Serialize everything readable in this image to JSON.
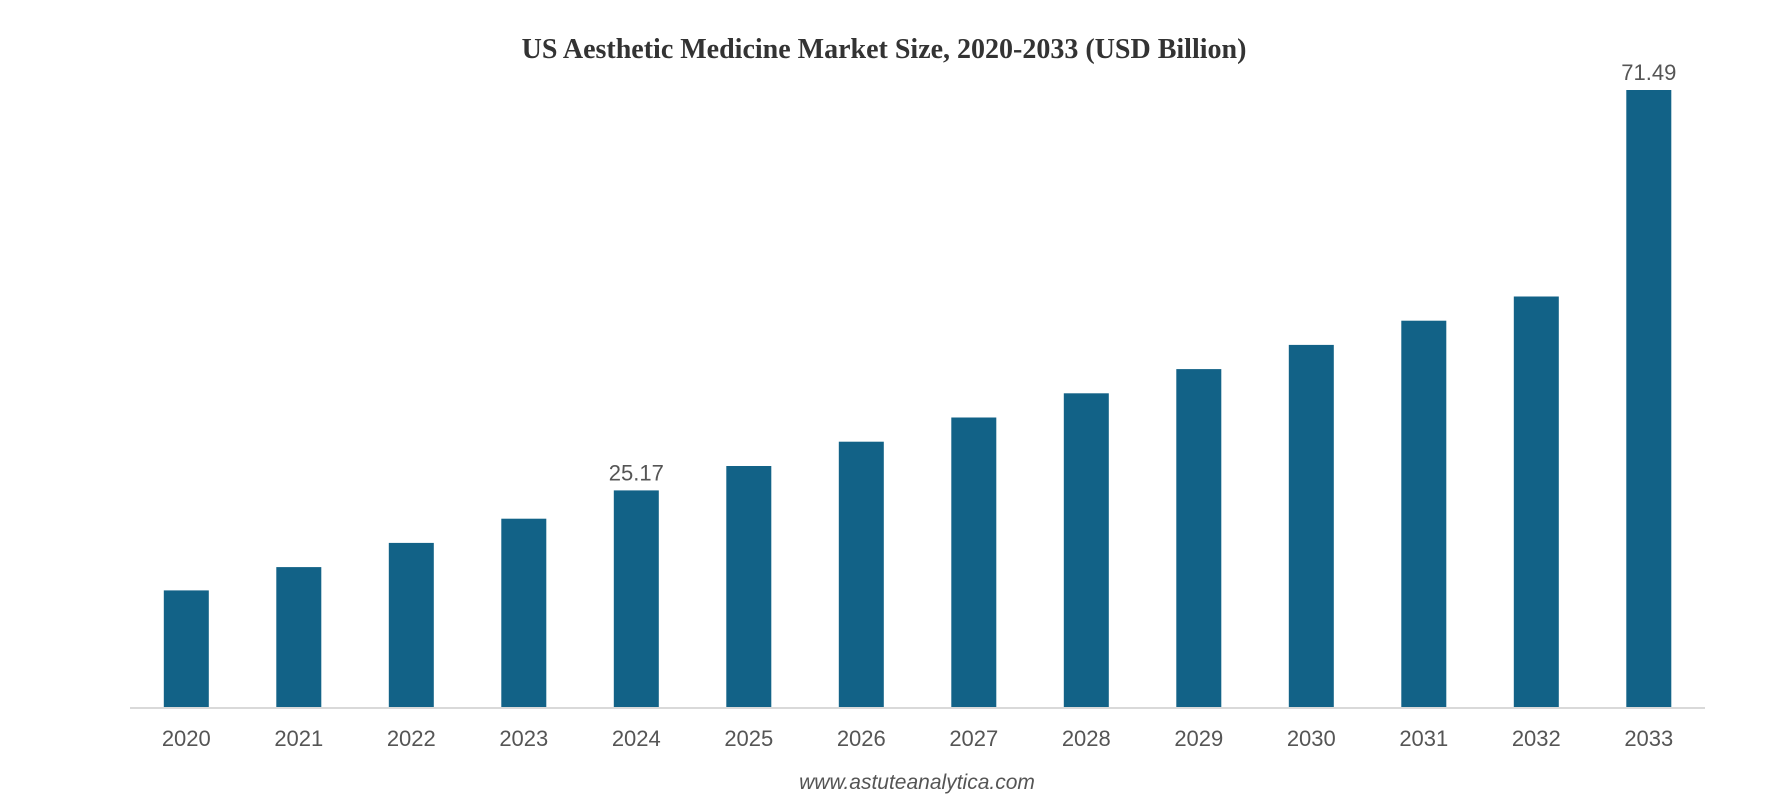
{
  "chart_data": {
    "type": "bar",
    "title": "US Aesthetic Medicine Market Size, 2020-2033 (USD Billion)",
    "xlabel": "",
    "ylabel": "",
    "categories": [
      "2020",
      "2021",
      "2022",
      "2023",
      "2024",
      "2025",
      "2026",
      "2027",
      "2028",
      "2029",
      "2030",
      "2031",
      "2032",
      "2033"
    ],
    "series": [
      {
        "values": [
          13.6,
          16.3,
          19.1,
          21.9,
          25.17,
          28.0,
          30.8,
          33.6,
          36.4,
          39.2,
          42.0,
          44.8,
          47.6,
          71.49
        ],
        "color": "#126287"
      }
    ],
    "data_labels": [
      {
        "category": "2024",
        "text": "25.17"
      },
      {
        "category": "2033",
        "text": "71.49"
      }
    ],
    "ylim": [
      0,
      71.49
    ],
    "grid": false,
    "legend": "none",
    "axis_color": "#d9d9d9"
  },
  "source": "www.astuteanalytica.com"
}
